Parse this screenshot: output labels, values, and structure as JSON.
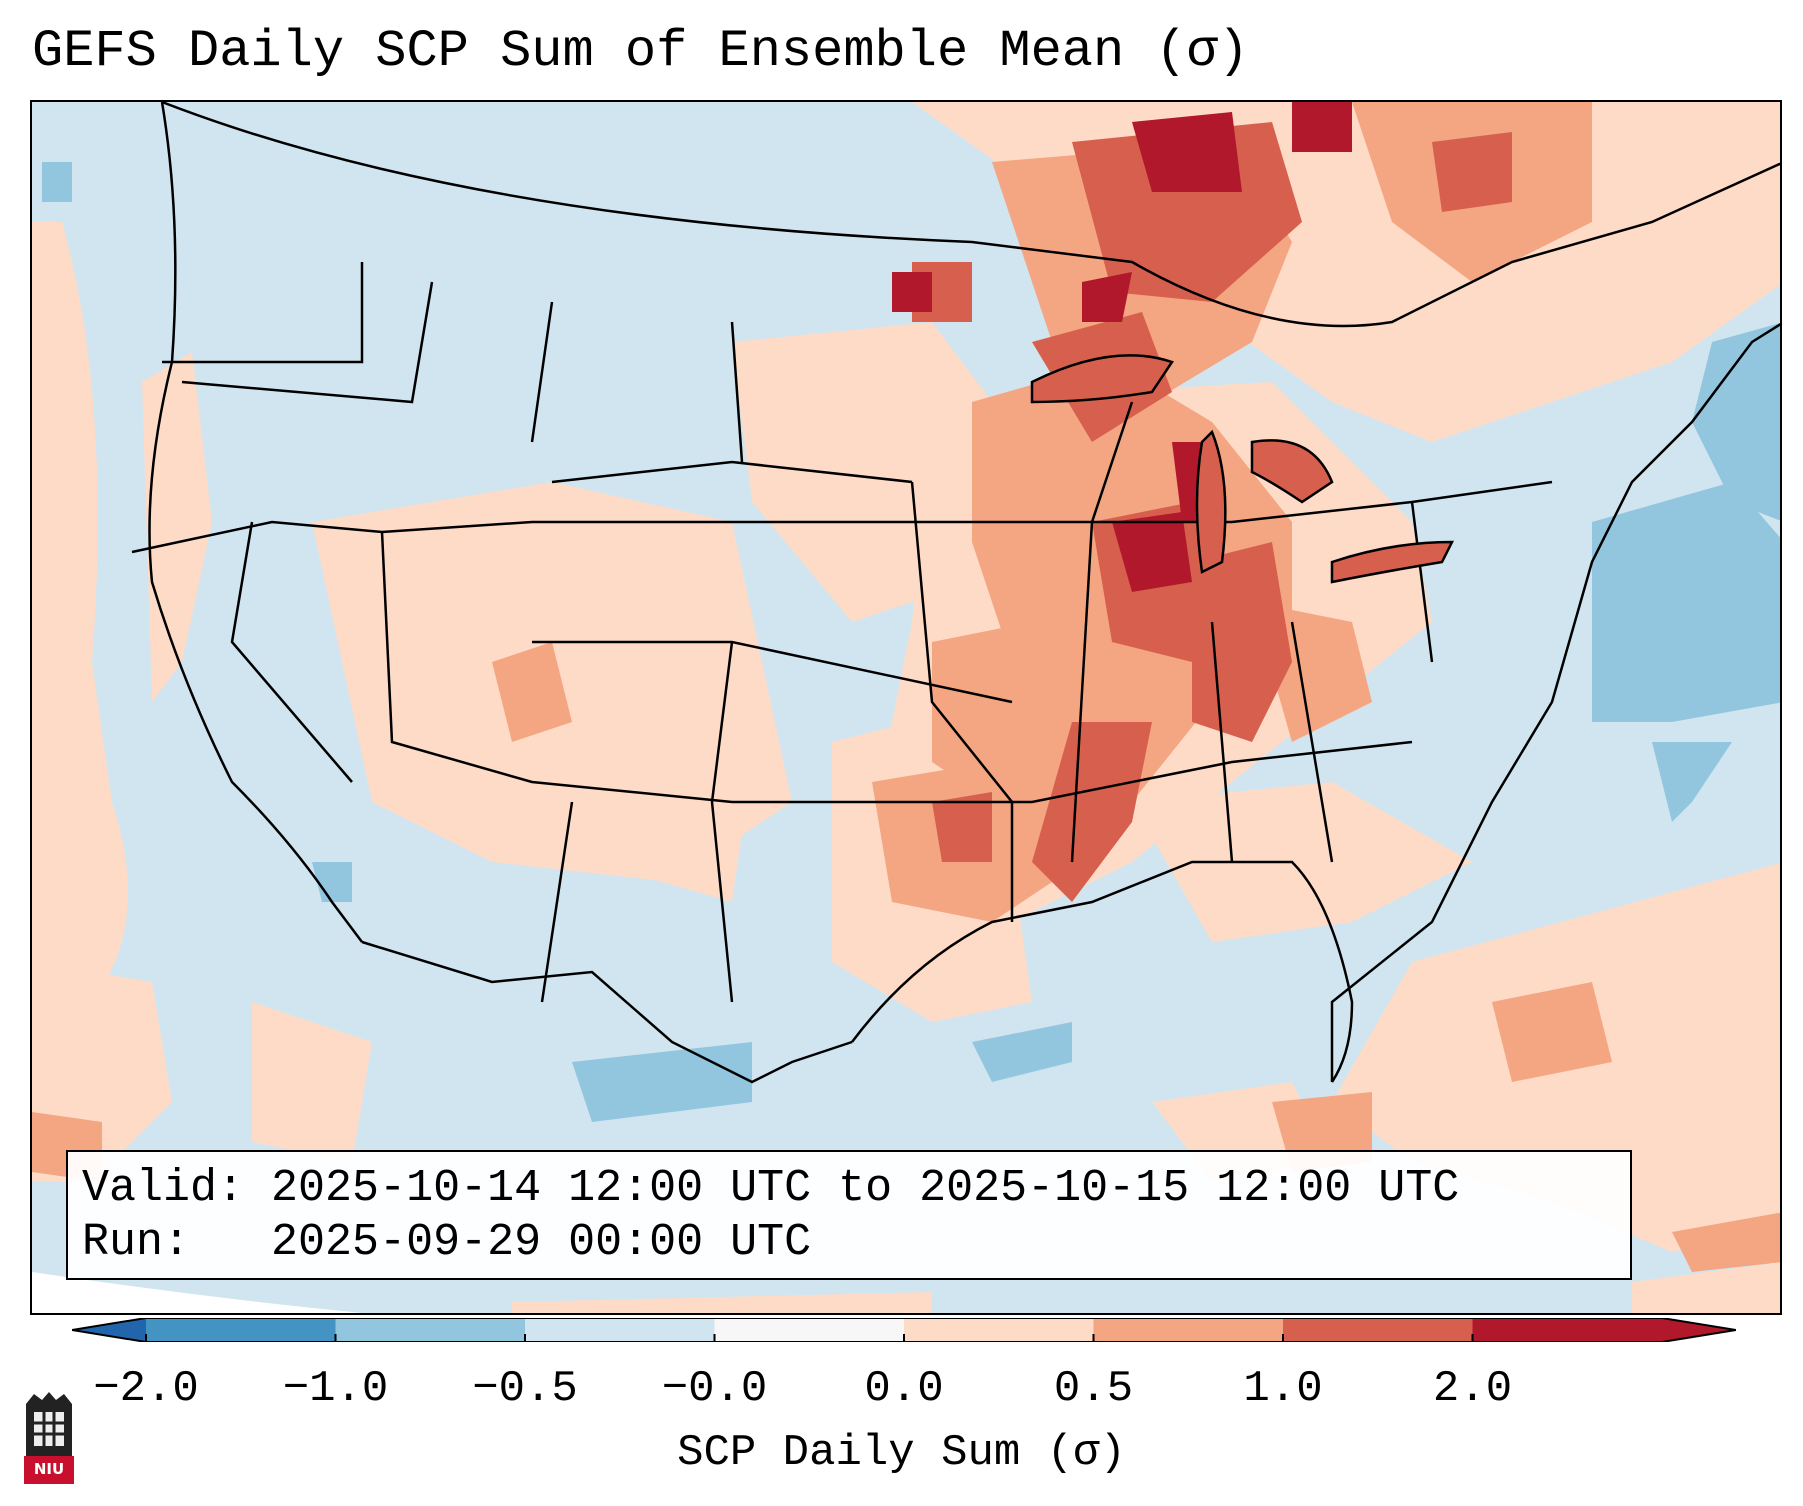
{
  "title": "GEFS Daily SCP Sum of Ensemble Mean (σ)",
  "valid_box": {
    "valid_label": "Valid:",
    "valid_value": "2025-10-14 12:00 UTC to 2025-10-15 12:00 UTC",
    "run_label": "Run:",
    "run_value": "2025-09-29 00:00 UTC"
  },
  "colorbar": {
    "label": "SCP Daily Sum (σ)",
    "ticks": [
      "−2.0",
      "−1.0",
      "−0.5",
      "−0.0",
      "0.0",
      "0.5",
      "1.0",
      "2.0"
    ],
    "colors": [
      "#4393c3",
      "#92c5de",
      "#d1e5f0",
      "#f7f7f7",
      "#fddbc7",
      "#f4a582",
      "#d6604d",
      "#b2182b"
    ],
    "under_color": "#2166ac",
    "over_color": "#b2182b"
  },
  "logo": {
    "text": "NIU"
  },
  "legend_colors": {
    "neutral_blue": "#d1e5f0",
    "light_red": "#fddbc7",
    "mid_red": "#f4a582",
    "strong_red": "#d6604d",
    "dark_red": "#b2182b",
    "mid_blue": "#92c5de"
  }
}
